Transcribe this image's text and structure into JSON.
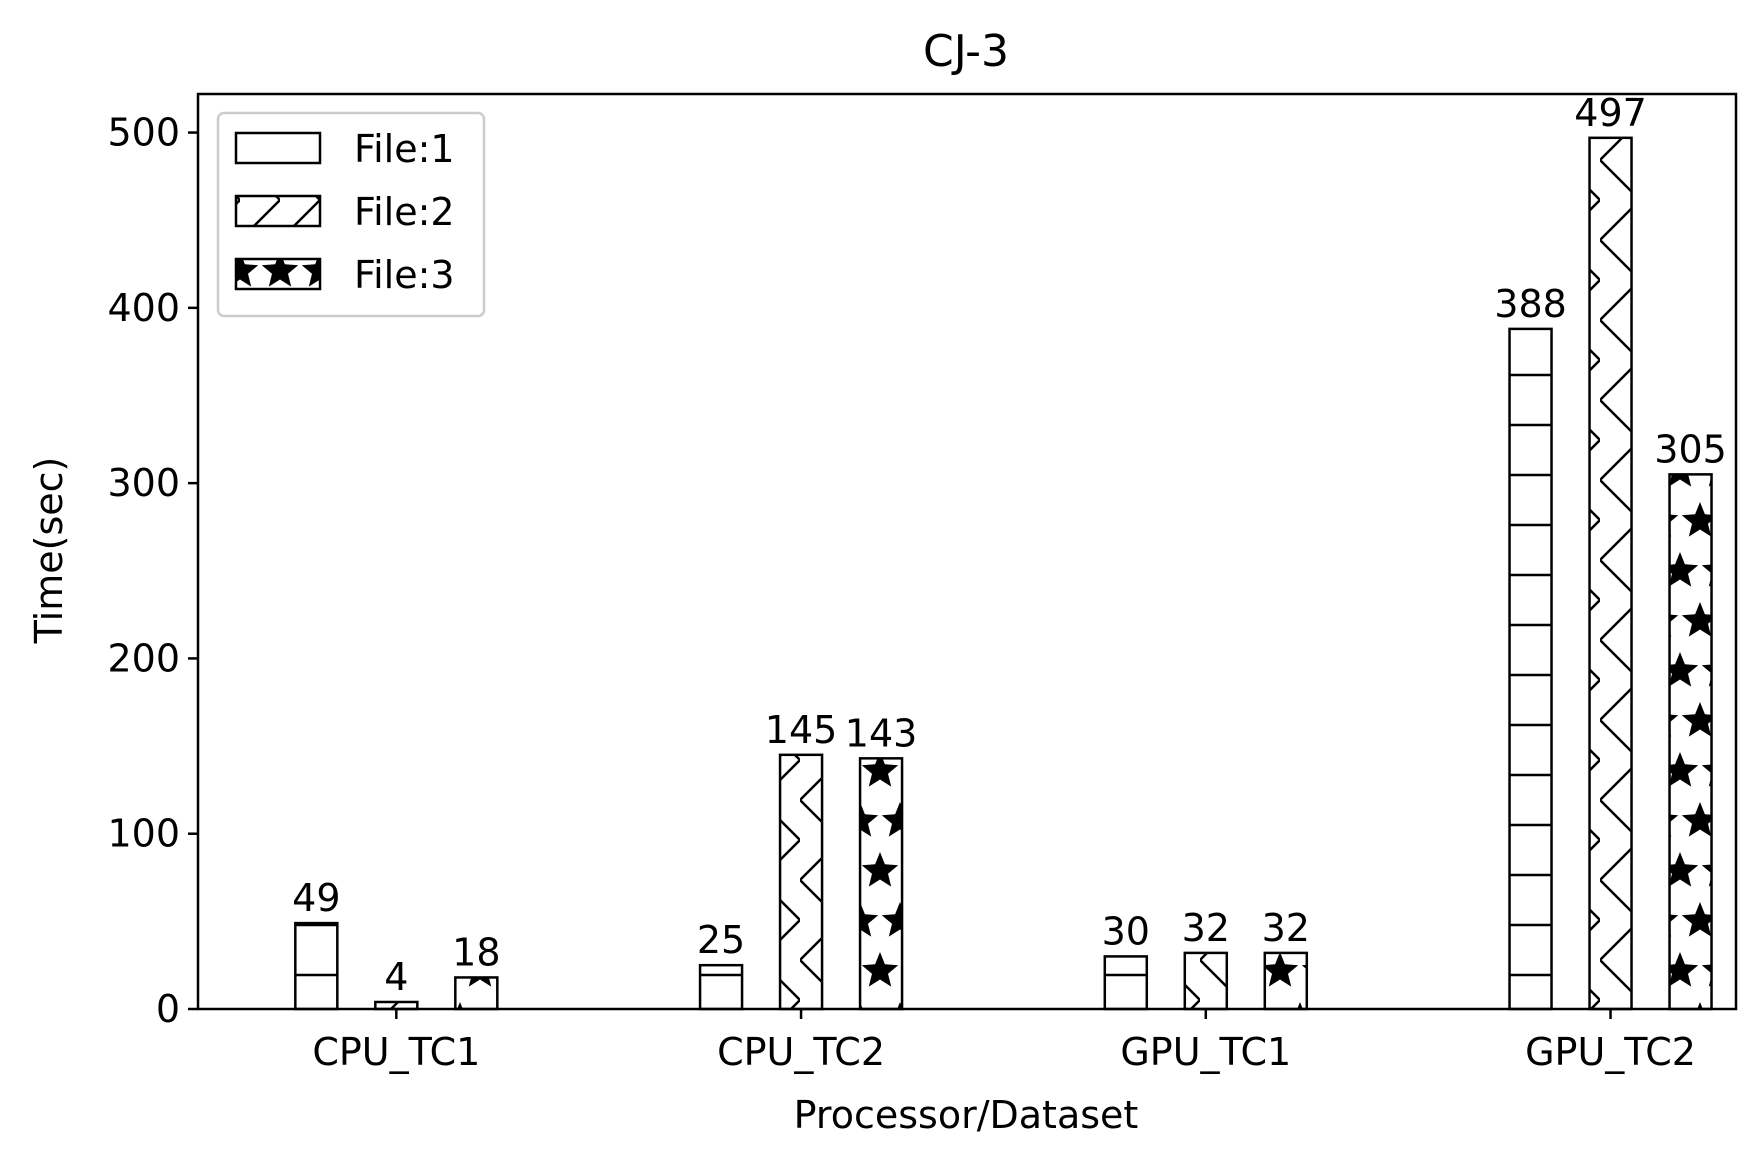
{
  "chart_data": {
    "type": "bar",
    "title": "CJ-3",
    "xlabel": "Processor/Dataset",
    "ylabel": "Time(sec)",
    "categories": [
      "CPU_TC1",
      "CPU_TC2",
      "GPU_TC1",
      "GPU_TC2"
    ],
    "series": [
      {
        "name": "File:1",
        "values": [
          49,
          25,
          30,
          388
        ],
        "hatch": "horizontal-lines"
      },
      {
        "name": "File:2",
        "values": [
          4,
          145,
          32,
          497
        ],
        "hatch": "cross-diagonal"
      },
      {
        "name": "File:3",
        "values": [
          18,
          143,
          32,
          305
        ],
        "hatch": "stars"
      }
    ],
    "ylim": [
      0,
      522
    ],
    "yticks": [
      0,
      100,
      200,
      300,
      400,
      500
    ],
    "grid": false,
    "legend_position": "top-left",
    "colors": {
      "edge": "#000000",
      "fill": "#ffffff",
      "hatch": "#000000"
    }
  }
}
